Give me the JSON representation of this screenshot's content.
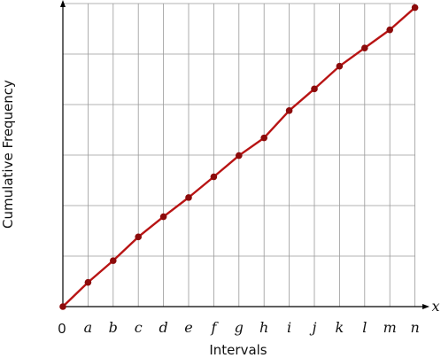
{
  "chart_data": {
    "type": "line",
    "xlabel": "Intervals",
    "ylabel": "Cumulative Frequency",
    "x_axis_symbol": "x",
    "origin_label": "0",
    "categories": [
      "0",
      "a",
      "b",
      "c",
      "d",
      "e",
      "f",
      "g",
      "h",
      "i",
      "j",
      "k",
      "l",
      "m",
      "n"
    ],
    "tick_labels": [
      "a",
      "b",
      "c",
      "d",
      "e",
      "f",
      "g",
      "h",
      "i",
      "j",
      "k",
      "l",
      "m",
      "n"
    ],
    "values": [
      0,
      0.48,
      0.91,
      1.38,
      1.78,
      2.16,
      2.57,
      2.99,
      3.34,
      3.88,
      4.31,
      4.76,
      5.12,
      5.48,
      5.92
    ],
    "ylim": [
      0,
      6
    ],
    "grid": true,
    "line_color": "#b81414",
    "marker_color": "#8c0b0b"
  }
}
